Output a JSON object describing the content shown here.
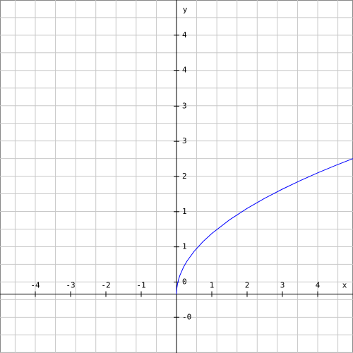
{
  "chart_data": {
    "type": "line",
    "x_label": "x",
    "y_label": "y",
    "xlim": [
      -5,
      5
    ],
    "ylim": [
      -0.97,
      4.85
    ],
    "xticks": [
      -4,
      -3,
      -2,
      -1,
      1,
      2,
      3,
      4
    ],
    "yticks": [
      {
        "value": -0.38,
        "label": "-0"
      },
      {
        "value": 0.2,
        "label": "0"
      },
      {
        "value": 0.78,
        "label": "1"
      },
      {
        "value": 1.36,
        "label": "1"
      },
      {
        "value": 1.94,
        "label": "2"
      },
      {
        "value": 2.52,
        "label": "3"
      },
      {
        "value": 3.1,
        "label": "3"
      },
      {
        "value": 3.69,
        "label": "4"
      },
      {
        "value": 4.27,
        "label": "4"
      }
    ],
    "grid": true,
    "x": [
      0,
      0.01,
      0.03,
      0.06,
      0.1,
      0.2,
      0.3,
      0.5,
      0.75,
      1,
      1.5,
      2,
      2.5,
      3,
      3.5,
      4,
      4.5,
      5
    ],
    "series": [
      {
        "color": "#0000ff",
        "values": [
          0,
          0.1,
          0.173,
          0.245,
          0.316,
          0.447,
          0.548,
          0.707,
          0.866,
          1,
          1.225,
          1.414,
          1.581,
          1.732,
          1.871,
          2,
          2.121,
          2.236
        ]
      }
    ]
  }
}
